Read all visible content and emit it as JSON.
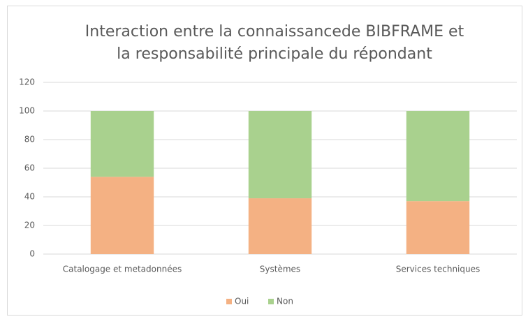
{
  "chart_data": {
    "type": "stacked_bar",
    "title": [
      "Interaction entre la connaissancede BIBFRAME et",
      "la responsabilité principale du répondant"
    ],
    "categories": [
      "Catalogage et metadonnées",
      "Systèmes",
      "Services techniques"
    ],
    "series": [
      {
        "name": "Oui",
        "color": "#f4b183",
        "values": [
          54,
          39,
          37
        ]
      },
      {
        "name": "Non",
        "color": "#a9d18e",
        "values": [
          46,
          61,
          63
        ]
      }
    ],
    "ylim": [
      0,
      120
    ],
    "yticks": [
      0,
      20,
      40,
      60,
      80,
      100,
      120
    ],
    "grid": true,
    "legend": "bottom"
  }
}
